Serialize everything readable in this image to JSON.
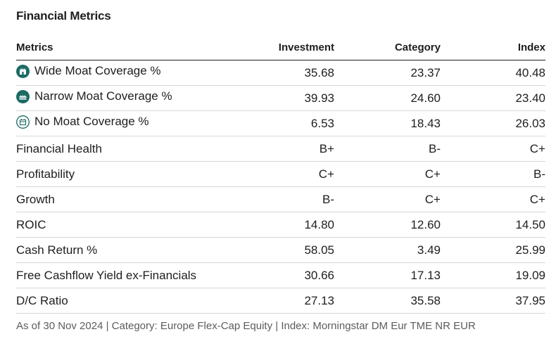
{
  "title": "Financial Metrics",
  "colors": {
    "moat_teal": "#1b6b63",
    "text": "#1e1e1e",
    "muted": "#5c5c5c",
    "divider": "#d7d7d7"
  },
  "columns": {
    "metrics": "Metrics",
    "investment": "Investment",
    "category": "Category",
    "index": "Index"
  },
  "rows": [
    {
      "metric": "Wide Moat Coverage %",
      "icon": "wide-moat-icon",
      "investment": "35.68",
      "category": "23.37",
      "index": "40.48"
    },
    {
      "metric": "Narrow Moat Coverage %",
      "icon": "narrow-moat-icon",
      "investment": "39.93",
      "category": "24.60",
      "index": "23.40"
    },
    {
      "metric": "No Moat Coverage %",
      "icon": "no-moat-icon",
      "investment": "6.53",
      "category": "18.43",
      "index": "26.03"
    },
    {
      "metric": "Financial Health",
      "investment": "B+",
      "category": "B-",
      "index": "C+"
    },
    {
      "metric": "Profitability",
      "investment": "C+",
      "category": "C+",
      "index": "B-"
    },
    {
      "metric": "Growth",
      "investment": "B-",
      "category": "C+",
      "index": "C+"
    },
    {
      "metric": "ROIC",
      "investment": "14.80",
      "category": "12.60",
      "index": "14.50"
    },
    {
      "metric": "Cash Return %",
      "investment": "58.05",
      "category": "3.49",
      "index": "25.99"
    },
    {
      "metric": "Free Cashflow Yield ex-Financials",
      "investment": "30.66",
      "category": "17.13",
      "index": "19.09"
    },
    {
      "metric": "D/C Ratio",
      "investment": "27.13",
      "category": "35.58",
      "index": "37.95"
    }
  ],
  "footnote": "As of 30 Nov 2024 | Category: Europe Flex-Cap Equity | Index: Morningstar DM Eur TME NR EUR"
}
